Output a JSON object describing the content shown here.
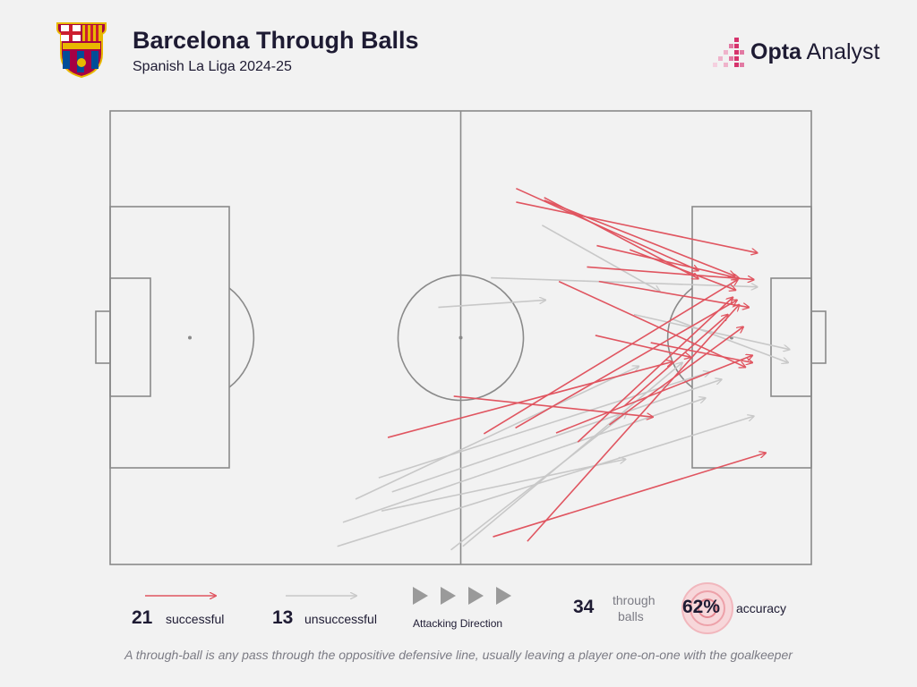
{
  "header": {
    "title": "Barcelona Through Balls",
    "subtitle": "Spanish La Liga 2024-25",
    "brand_bold": "Opta",
    "brand_light": " Analyst",
    "crest_text": "FCB"
  },
  "colors": {
    "successful": "#e05560",
    "unsuccessful": "#c8c8c8",
    "pitch_lines": "#8a8a8a",
    "text": "#1e1b33",
    "brand_pink": "#d6336c"
  },
  "chart_data": {
    "type": "scatter",
    "title": "Barcelona Through Balls",
    "subtitle": "Spanish La Liga 2024-25",
    "coordinate_system": "pitch, x 0-100 (own goal to opponent goal), y 0-100 (top to bottom)",
    "attacking_direction": "left-to-right",
    "passes": [
      {
        "x1": 57.9,
        "y1": 17.1,
        "x2": 83.9,
        "y2": 35.2,
        "successful": true
      },
      {
        "x1": 61.9,
        "y1": 19.1,
        "x2": 83.9,
        "y2": 37.0,
        "successful": true
      },
      {
        "x1": 57.9,
        "y1": 20.1,
        "x2": 92.3,
        "y2": 31.3,
        "successful": true
      },
      {
        "x1": 61.9,
        "y1": 19.7,
        "x2": 89.1,
        "y2": 36.4,
        "successful": true
      },
      {
        "x1": 69.4,
        "y1": 29.7,
        "x2": 89.7,
        "y2": 36.9,
        "successful": true
      },
      {
        "x1": 68.0,
        "y1": 34.4,
        "x2": 91.8,
        "y2": 37.2,
        "successful": true
      },
      {
        "x1": 74.1,
        "y1": 30.6,
        "x2": 89.2,
        "y2": 39.5,
        "successful": true
      },
      {
        "x1": 69.7,
        "y1": 37.6,
        "x2": 91.1,
        "y2": 43.3,
        "successful": true
      },
      {
        "x1": 64.0,
        "y1": 37.6,
        "x2": 90.6,
        "y2": 56.5,
        "successful": true
      },
      {
        "x1": 69.2,
        "y1": 49.5,
        "x2": 82.8,
        "y2": 54.3,
        "successful": true
      },
      {
        "x1": 77.1,
        "y1": 51.1,
        "x2": 91.6,
        "y2": 55.5,
        "successful": true
      },
      {
        "x1": 39.6,
        "y1": 72.0,
        "x2": 80.2,
        "y2": 55.3,
        "successful": true
      },
      {
        "x1": 49.0,
        "y1": 62.9,
        "x2": 77.4,
        "y2": 67.5,
        "successful": true
      },
      {
        "x1": 53.3,
        "y1": 71.2,
        "x2": 89.5,
        "y2": 37.2,
        "successful": true
      },
      {
        "x1": 57.8,
        "y1": 69.9,
        "x2": 89.4,
        "y2": 41.7,
        "successful": true
      },
      {
        "x1": 59.5,
        "y1": 94.9,
        "x2": 89.7,
        "y2": 42.7,
        "successful": true
      },
      {
        "x1": 63.6,
        "y1": 71.0,
        "x2": 91.6,
        "y2": 53.9,
        "successful": true
      },
      {
        "x1": 66.7,
        "y1": 73.0,
        "x2": 88.8,
        "y2": 41.1,
        "successful": true
      },
      {
        "x1": 71.2,
        "y1": 69.2,
        "x2": 90.3,
        "y2": 47.6,
        "successful": true
      },
      {
        "x1": 73.3,
        "y1": 65.1,
        "x2": 88.1,
        "y2": 44.9,
        "successful": true
      },
      {
        "x1": 54.6,
        "y1": 93.9,
        "x2": 93.5,
        "y2": 75.4,
        "successful": true
      },
      {
        "x1": 61.6,
        "y1": 25.2,
        "x2": 78.4,
        "y2": 39.8,
        "successful": false
      },
      {
        "x1": 54.3,
        "y1": 36.8,
        "x2": 92.3,
        "y2": 38.8,
        "successful": false
      },
      {
        "x1": 46.8,
        "y1": 43.3,
        "x2": 62.1,
        "y2": 41.7,
        "successful": false
      },
      {
        "x1": 74.7,
        "y1": 44.9,
        "x2": 96.9,
        "y2": 52.6,
        "successful": false
      },
      {
        "x1": 80.2,
        "y1": 45.9,
        "x2": 96.7,
        "y2": 55.5,
        "successful": false
      },
      {
        "x1": 35.0,
        "y1": 85.6,
        "x2": 75.4,
        "y2": 56.3,
        "successful": false
      },
      {
        "x1": 38.3,
        "y1": 80.9,
        "x2": 85.5,
        "y2": 57.6,
        "successful": false
      },
      {
        "x1": 40.2,
        "y1": 84.0,
        "x2": 87.2,
        "y2": 59.2,
        "successful": false
      },
      {
        "x1": 33.2,
        "y1": 90.7,
        "x2": 84.9,
        "y2": 63.3,
        "successful": false
      },
      {
        "x1": 32.4,
        "y1": 96.0,
        "x2": 91.8,
        "y2": 67.3,
        "successful": false
      },
      {
        "x1": 38.7,
        "y1": 88.2,
        "x2": 73.5,
        "y2": 76.8,
        "successful": false
      },
      {
        "x1": 48.6,
        "y1": 96.8,
        "x2": 73.7,
        "y2": 66.5,
        "successful": false
      },
      {
        "x1": 50.3,
        "y1": 96.0,
        "x2": 81.6,
        "y2": 55.5,
        "successful": false
      }
    ],
    "legend": {
      "successful_count": "21",
      "successful_label": "successful",
      "unsuccessful_count": "13",
      "unsuccessful_label": "unsuccessful",
      "direction_label": "Attacking Direction",
      "total_count": "34",
      "total_label_line1": "through",
      "total_label_line2": "balls",
      "accuracy_value": "62%",
      "accuracy_label": "accuracy"
    }
  },
  "footnote": "A through-ball is any pass through the oppositive defensive line, usually leaving a player one-on-one with the goalkeeper"
}
